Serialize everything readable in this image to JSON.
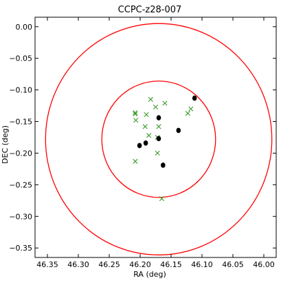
{
  "chart_data": {
    "type": "scatter",
    "title": "CCPC-z28-007",
    "xlabel": "RA (deg)",
    "ylabel": "DEC (deg)",
    "xlim": [
      46.37,
      45.98
    ],
    "ylim": [
      -0.365,
      0.015
    ],
    "x_inverted": true,
    "x_ticks": [
      46.35,
      46.3,
      46.25,
      46.2,
      46.15,
      46.1,
      46.05,
      46.0
    ],
    "x_tick_labels": [
      "46.35",
      "46.30",
      "46.25",
      "46.20",
      "46.15",
      "46.10",
      "46.05",
      "46.00"
    ],
    "y_ticks": [
      0.0,
      -0.05,
      -0.1,
      -0.15,
      -0.2,
      -0.25,
      -0.3,
      -0.35
    ],
    "y_tick_labels": [
      "0.00",
      "−0.05",
      "−0.10",
      "−0.15",
      "−0.20",
      "−0.25",
      "−0.30",
      "−0.35"
    ],
    "grid": false,
    "colors": {
      "circles": "#ff0000",
      "crosses": "#3a9a28",
      "dots": "#000000"
    },
    "circles": [
      {
        "center": [
          46.17,
          -0.178
        ],
        "radius_deg": 0.183
      },
      {
        "center": [
          46.17,
          -0.178
        ],
        "radius_deg": 0.092
      }
    ],
    "series": [
      {
        "marker": "cross",
        "points": [
          [
            46.183,
            -0.115
          ],
          [
            46.175,
            -0.127
          ],
          [
            46.16,
            -0.121
          ],
          [
            46.208,
            -0.136
          ],
          [
            46.208,
            -0.138
          ],
          [
            46.207,
            -0.148
          ],
          [
            46.19,
            -0.139
          ],
          [
            46.123,
            -0.137
          ],
          [
            46.118,
            -0.13
          ],
          [
            46.17,
            -0.158
          ],
          [
            46.192,
            -0.158
          ],
          [
            46.186,
            -0.172
          ],
          [
            46.172,
            -0.175
          ],
          [
            46.172,
            -0.2
          ],
          [
            46.208,
            -0.213
          ],
          [
            46.165,
            -0.272
          ]
        ]
      },
      {
        "marker": "dot",
        "points": [
          [
            46.112,
            -0.113
          ],
          [
            46.17,
            -0.144
          ],
          [
            46.138,
            -0.164
          ],
          [
            46.17,
            -0.177
          ],
          [
            46.191,
            -0.184
          ],
          [
            46.201,
            -0.188
          ],
          [
            46.163,
            -0.219
          ]
        ]
      }
    ]
  }
}
